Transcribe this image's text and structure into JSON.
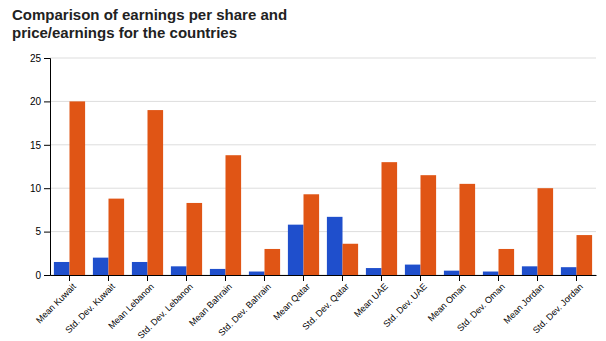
{
  "chart_data": {
    "type": "bar",
    "title": "Comparison of earnings per share and\nprice/earnings for the countries",
    "categories": [
      "Mean Kuwait",
      "Std. Dev. Kuwait",
      "Mean Lebanon",
      "Std. Dev. Lebanon",
      "Mean Bahrain",
      "Std. Dev. Bahrain",
      "Mean Qatar",
      "Std. Dev. Qatar",
      "Mean UAE",
      "Std. Dev. UAE",
      "Mean Oman",
      "Std. Dev. Oman",
      "Mean Jordan",
      "Std. Dev. Jordan"
    ],
    "series": [
      {
        "color": "#1f4fcc",
        "values": [
          1.5,
          2.0,
          1.5,
          1.0,
          0.7,
          0.4,
          5.8,
          6.7,
          0.8,
          1.2,
          0.5,
          0.4,
          1.0,
          0.9
        ]
      },
      {
        "color": "#e05515",
        "values": [
          20.0,
          8.8,
          19.0,
          8.3,
          13.8,
          3.0,
          9.3,
          3.6,
          13.0,
          11.5,
          10.5,
          3.0,
          10.0,
          4.6
        ]
      }
    ],
    "ylim": [
      0,
      25
    ],
    "yticks": [
      0,
      5,
      10,
      15,
      20,
      25
    ],
    "grid": true
  }
}
